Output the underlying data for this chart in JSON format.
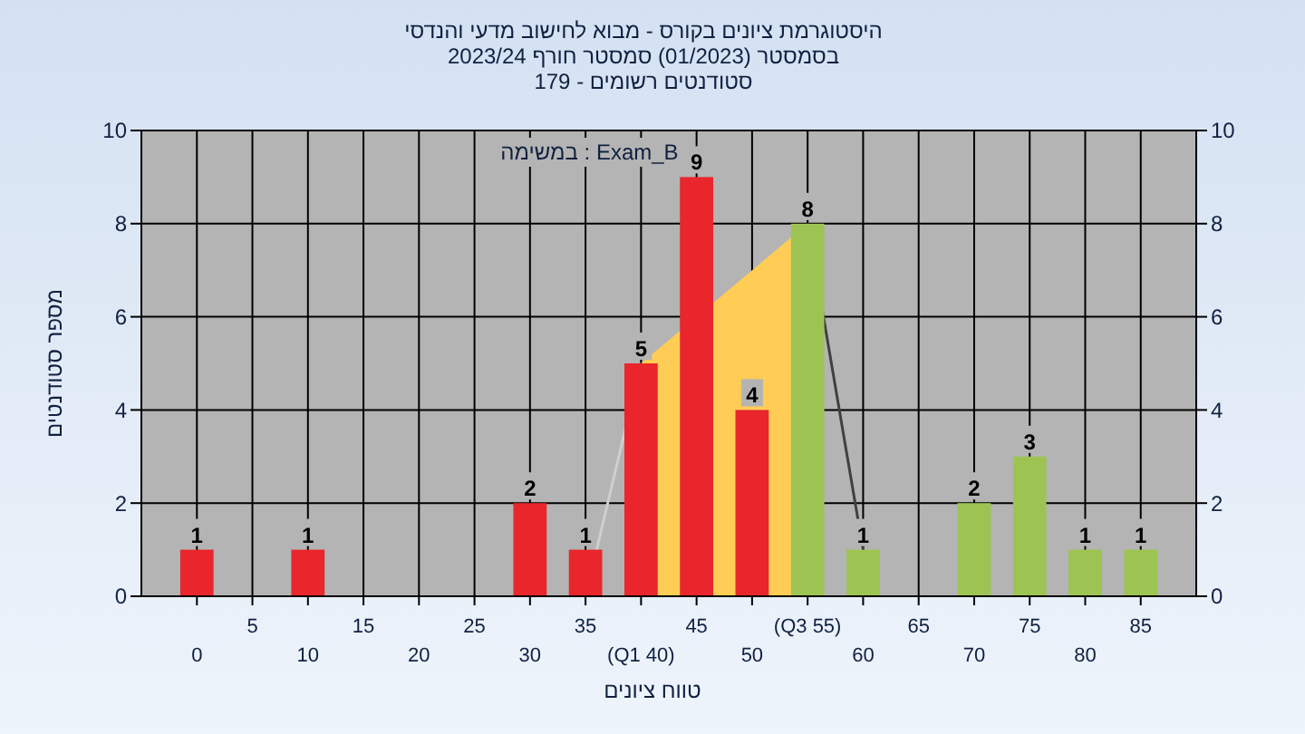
{
  "chart_data": {
    "type": "bar",
    "title": "היסטוגרמת ציונים בקורס - מבוא לחישוב מדעי והנדסי",
    "subtitle": "בסמסטר  (01/2023)  סמסטר חורף 2023/24\nסטודנטים רשומים - 179",
    "xlabel": "טווח ציונים",
    "ylabel": "מספר סטודנטים",
    "annotations": [
      "במשימה : Exam_B"
    ],
    "categories": [
      "0",
      "5",
      "10",
      "15",
      "20",
      "25",
      "30",
      "35",
      "(Q1 40)",
      "45",
      "50",
      "(Q3 55)",
      "60",
      "65",
      "70",
      "75",
      "80",
      "85"
    ],
    "series": [
      {
        "type": "area",
        "x": [
          "(Q1 40)",
          "(Q3 55)"
        ],
        "values": [
          5,
          8
        ],
        "color": "#ffcc55"
      },
      {
        "type": "line",
        "x": [
          "35",
          "(Q1 40)"
        ],
        "values": [
          0,
          5
        ],
        "color": "#cfcfcf"
      },
      {
        "type": "line",
        "x": [
          "(Q3 55)",
          "60"
        ],
        "values": [
          8,
          1
        ],
        "color": "#404040"
      },
      {
        "values": [
          1,
          null,
          1,
          null,
          null,
          null,
          2,
          1,
          5,
          9,
          4,
          8,
          1,
          null,
          2,
          3,
          1,
          1
        ],
        "value_labels": [
          "1",
          null,
          "1",
          null,
          null,
          null,
          "2",
          "1",
          "5",
          "9",
          "4",
          "8",
          "1",
          null,
          "2",
          "3",
          "1",
          "1"
        ],
        "colors": [
          "#e8262b",
          null,
          "#e8262b",
          null,
          null,
          null,
          "#e8262b",
          "#e8262b",
          "#e8262b",
          "#e8262b",
          "#e8262b",
          "#9dc452",
          "#9dc452",
          null,
          "#9dc452",
          "#9dc452",
          "#9dc452",
          "#9dc452"
        ]
      }
    ],
    "ylim": [
      0,
      10
    ],
    "yticks": [
      0,
      2,
      4,
      6,
      8,
      10
    ],
    "y2lim": [
      0,
      10
    ],
    "y2ticks": [
      0,
      2,
      4,
      6,
      8,
      10
    ],
    "grid": true
  }
}
